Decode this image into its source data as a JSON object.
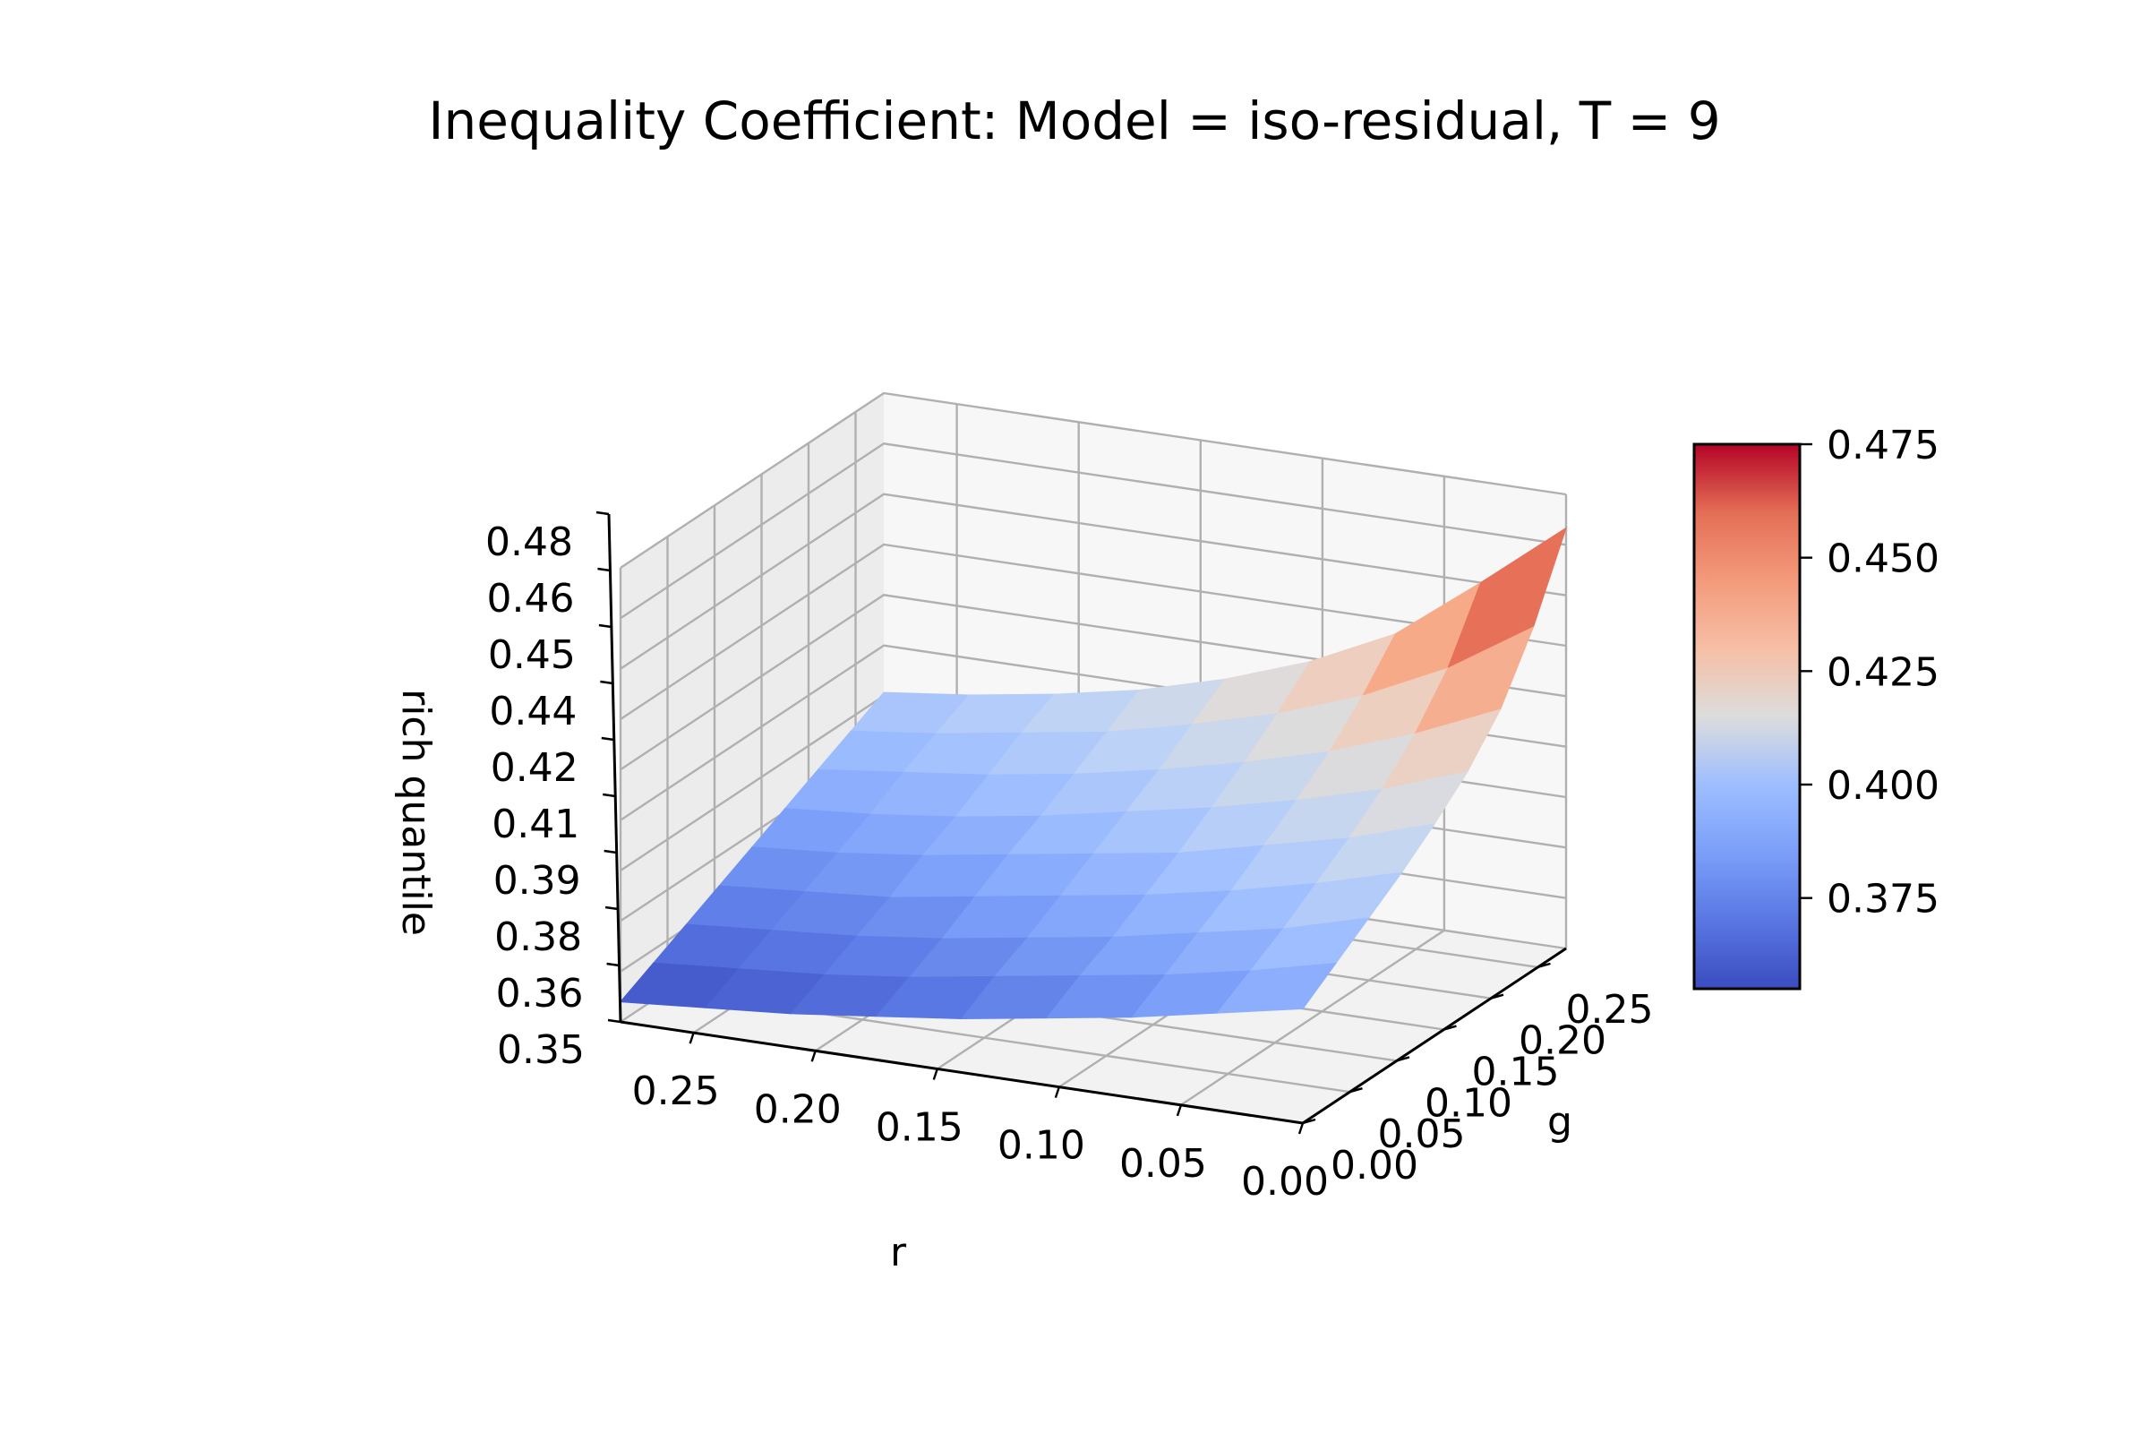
{
  "chart_data": {
    "type": "surface3d",
    "title": "Inequality Coefficient: Model = iso-residual, T = 9",
    "xlabel": "r",
    "ylabel": "g",
    "zlabel": "rich quantile",
    "x_ticks": [
      "0.25",
      "0.20",
      "0.15",
      "0.10",
      "0.05",
      "0.00"
    ],
    "y_ticks": [
      "0.00",
      "0.05",
      "0.10",
      "0.15",
      "0.20",
      "0.25"
    ],
    "z_ticks": [
      "0.35",
      "0.36",
      "0.38",
      "0.39",
      "0.41",
      "0.42",
      "0.44",
      "0.45",
      "0.46",
      "0.48"
    ],
    "xlim": [
      0,
      0.28
    ],
    "ylim": [
      0,
      0.28
    ],
    "zlim": [
      0.35,
      0.485
    ],
    "r_values": [
      0.28,
      0.245,
      0.21,
      0.175,
      0.14,
      0.105,
      0.07,
      0.035,
      0.0
    ],
    "g_values": [
      0.0,
      0.035,
      0.07,
      0.105,
      0.14,
      0.175,
      0.21,
      0.245,
      0.28
    ],
    "z_description": "rows indexed by g_values, columns by r_values",
    "z": [
      [
        0.356,
        0.358,
        0.36,
        0.363,
        0.366,
        0.37,
        0.374,
        0.379,
        0.384
      ],
      [
        0.361,
        0.363,
        0.365,
        0.368,
        0.372,
        0.376,
        0.38,
        0.385,
        0.391
      ],
      [
        0.366,
        0.368,
        0.37,
        0.373,
        0.377,
        0.381,
        0.386,
        0.391,
        0.398
      ],
      [
        0.371,
        0.373,
        0.375,
        0.379,
        0.383,
        0.387,
        0.392,
        0.398,
        0.405
      ],
      [
        0.376,
        0.378,
        0.381,
        0.385,
        0.389,
        0.393,
        0.399,
        0.405,
        0.413
      ],
      [
        0.381,
        0.383,
        0.386,
        0.39,
        0.395,
        0.4,
        0.406,
        0.413,
        0.422
      ],
      [
        0.386,
        0.389,
        0.392,
        0.396,
        0.401,
        0.407,
        0.414,
        0.423,
        0.434
      ],
      [
        0.391,
        0.394,
        0.398,
        0.402,
        0.408,
        0.415,
        0.424,
        0.436,
        0.452
      ],
      [
        0.396,
        0.399,
        0.403,
        0.408,
        0.415,
        0.424,
        0.436,
        0.455,
        0.475
      ]
    ],
    "colormap": "coolwarm",
    "colorbar": {
      "min": 0.355,
      "max": 0.475,
      "ticks": [
        "0.375",
        "0.400",
        "0.425",
        "0.450",
        "0.475"
      ],
      "tick_values": [
        0.375,
        0.4,
        0.425,
        0.45,
        0.475
      ]
    },
    "grid": true
  }
}
